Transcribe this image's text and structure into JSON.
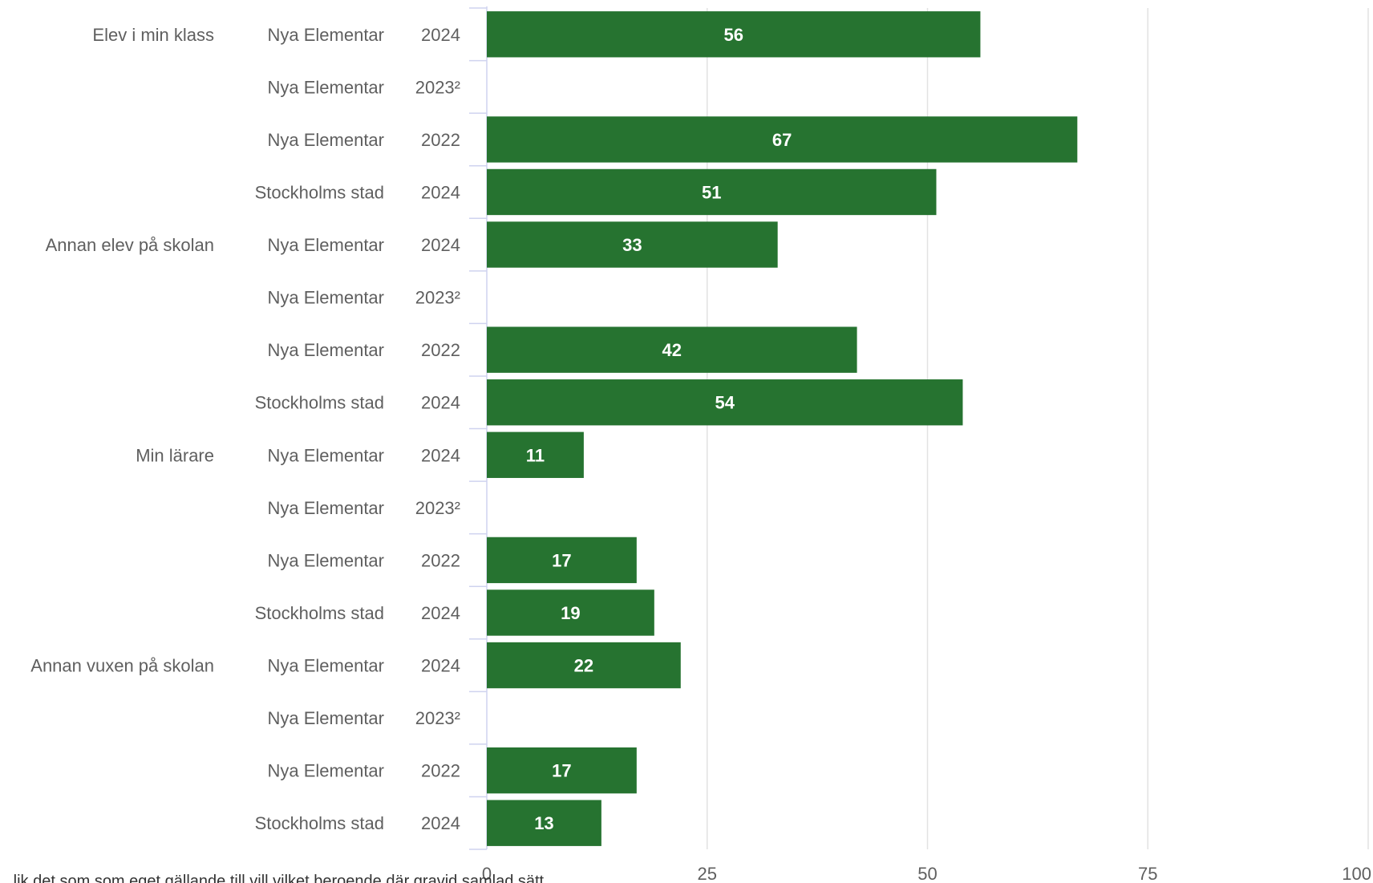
{
  "chart_data": {
    "type": "bar",
    "orientation": "horizontal",
    "xlim": [
      0,
      100
    ],
    "xticks": [
      "0",
      "25",
      "50",
      "75",
      "100"
    ],
    "bar_color": "#267330",
    "grid": true,
    "groups": [
      {
        "name": "Elev i min klass",
        "rows": [
          {
            "school": "Nya Elementar",
            "year": "2024",
            "value": 56,
            "label": "56"
          },
          {
            "school": "Nya Elementar",
            "year": "2023²",
            "value": null,
            "label": ""
          },
          {
            "school": "Nya Elementar",
            "year": "2022",
            "value": 67,
            "label": "67"
          },
          {
            "school": "Stockholms stad",
            "year": "2024",
            "value": 51,
            "label": "51"
          }
        ]
      },
      {
        "name": "Annan elev på skolan",
        "rows": [
          {
            "school": "Nya Elementar",
            "year": "2024",
            "value": 33,
            "label": "33"
          },
          {
            "school": "Nya Elementar",
            "year": "2023²",
            "value": null,
            "label": ""
          },
          {
            "school": "Nya Elementar",
            "year": "2022",
            "value": 42,
            "label": "42"
          },
          {
            "school": "Stockholms stad",
            "year": "2024",
            "value": 54,
            "label": "54"
          }
        ]
      },
      {
        "name": "Min lärare",
        "rows": [
          {
            "school": "Nya Elementar",
            "year": "2024",
            "value": 11,
            "label": "11"
          },
          {
            "school": "Nya Elementar",
            "year": "2023²",
            "value": null,
            "label": ""
          },
          {
            "school": "Nya Elementar",
            "year": "2022",
            "value": 17,
            "label": "17"
          },
          {
            "school": "Stockholms stad",
            "year": "2024",
            "value": 19,
            "label": "19"
          }
        ]
      },
      {
        "name": "Annan vuxen på skolan",
        "rows": [
          {
            "school": "Nya Elementar",
            "year": "2024",
            "value": 22,
            "label": "22"
          },
          {
            "school": "Nya Elementar",
            "year": "2023²",
            "value": null,
            "label": ""
          },
          {
            "school": "Nya Elementar",
            "year": "2022",
            "value": 17,
            "label": "17"
          },
          {
            "school": "Stockholms stad",
            "year": "2024",
            "value": 13,
            "label": "13"
          }
        ]
      }
    ]
  },
  "footnote": "...lik det som som eget gällande till vill vilket beroende där gravid samlad sätt..."
}
